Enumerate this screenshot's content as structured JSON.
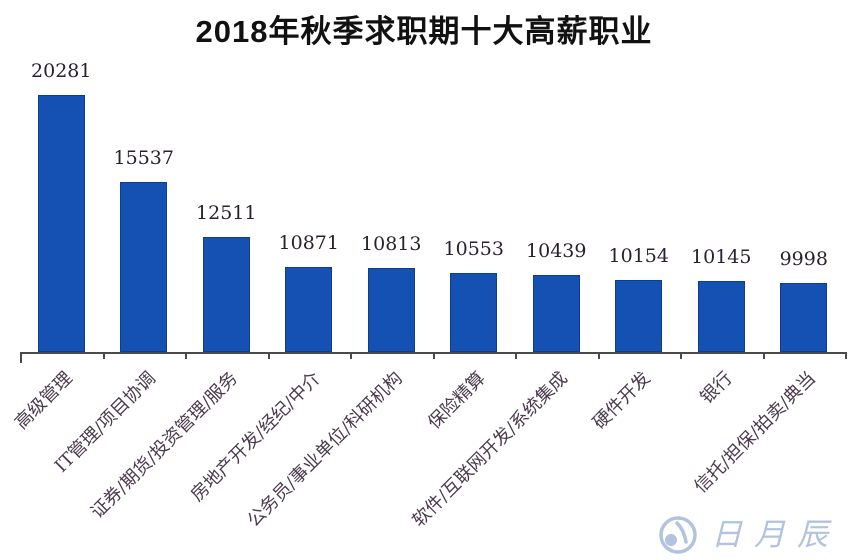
{
  "title": "2018年秋季求职期十大高薪职业",
  "watermark": {
    "text": "日月辰"
  },
  "chart_data": {
    "type": "bar",
    "title": "2018年秋季求职期十大高薪职业",
    "categories": [
      "高级管理",
      "IT管理/项目协调",
      "证券/期货/投资管理/服务",
      "房地产开发/经纪/中介",
      "公务员/事业单位/科研机构",
      "保险精算",
      "软件/互联网开发/系统集成",
      "硬件开发",
      "银行",
      "信托/担保/拍卖/典当"
    ],
    "values": [
      20281,
      15537,
      12511,
      10871,
      10813,
      10553,
      10439,
      10154,
      10145,
      9998
    ],
    "xlabel": "",
    "ylabel": "",
    "ylim": [
      6250,
      20281
    ],
    "grid": false,
    "legend": false,
    "data_labels": true,
    "bar_color": "#1551b2",
    "bar_border_color": "#0d3d8f",
    "value_label_color": "#2a2030",
    "category_label_color": "#4b3a4d",
    "axis_color": "#4a4a4a",
    "watermark_color": "#a9bddc"
  }
}
